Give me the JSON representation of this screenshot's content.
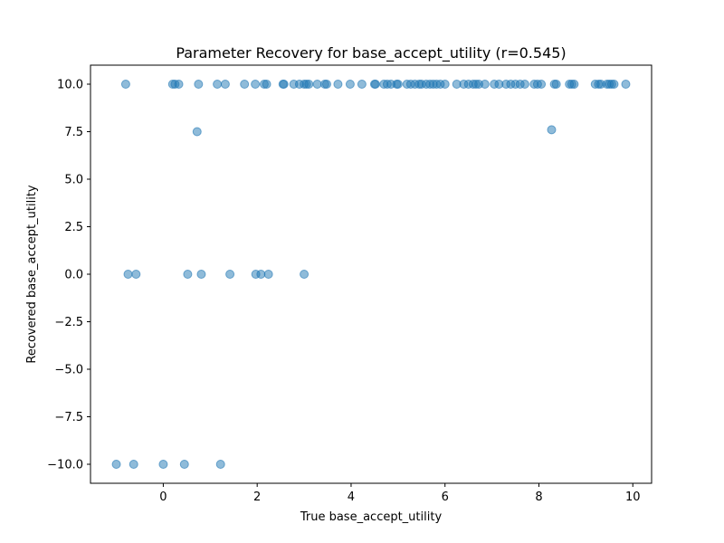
{
  "chart_data": {
    "type": "scatter",
    "title": "Parameter Recovery for base_accept_utility (r=0.545)",
    "xlabel": "True base_accept_utility",
    "ylabel": "Recovered base_accept_utility",
    "xlim": [
      -1.55,
      10.4
    ],
    "ylim": [
      -11.0,
      11.0
    ],
    "xticks": [
      0,
      2,
      4,
      6,
      8,
      10
    ],
    "yticks": [
      -10.0,
      -7.5,
      -5.0,
      -2.5,
      0.0,
      2.5,
      5.0,
      7.5,
      10.0
    ],
    "grid": false,
    "point_color": "#1f77b4",
    "point_alpha": 0.5,
    "series": [
      {
        "x": [
          -0.8,
          0.2,
          0.25,
          0.33,
          0.75,
          1.15,
          1.32,
          1.73,
          1.96,
          2.15,
          2.2,
          2.55,
          2.57,
          2.78,
          2.9,
          3.0,
          3.05,
          3.1,
          3.28,
          3.44,
          3.48,
          3.72,
          3.98,
          4.23,
          4.5,
          4.52,
          4.7,
          4.77,
          4.85,
          4.97,
          5.0,
          5.19,
          5.27,
          5.36,
          5.45,
          5.5,
          5.6,
          5.68,
          5.75,
          5.82,
          5.9,
          6.0,
          6.25,
          6.4,
          6.5,
          6.6,
          6.66,
          6.72,
          6.85,
          7.05,
          7.15,
          7.3,
          7.4,
          7.5,
          7.6,
          7.7,
          7.9,
          7.97,
          8.05,
          8.33,
          8.37,
          8.65,
          8.7,
          8.75,
          9.2,
          9.27,
          9.32,
          9.45,
          9.5,
          9.55,
          9.6,
          9.85,
          0.72,
          8.27,
          -0.75,
          -0.58,
          0.52,
          0.81,
          1.42,
          1.97,
          2.08,
          2.24,
          3.0,
          -1.0,
          -0.63,
          0.0,
          0.45,
          1.22
        ],
        "y": [
          10,
          10,
          10,
          10,
          10,
          10,
          10,
          10,
          10,
          10,
          10,
          10,
          10,
          10,
          10,
          10,
          10,
          10,
          10,
          10,
          10,
          10,
          10,
          10,
          10,
          10,
          10,
          10,
          10,
          10,
          10,
          10,
          10,
          10,
          10,
          10,
          10,
          10,
          10,
          10,
          10,
          10,
          10,
          10,
          10,
          10,
          10,
          10,
          10,
          10,
          10,
          10,
          10,
          10,
          10,
          10,
          10,
          10,
          10,
          10,
          10,
          10,
          10,
          10,
          10,
          10,
          10,
          10,
          10,
          10,
          10,
          10,
          7.5,
          7.6,
          0,
          0,
          0,
          0,
          0,
          0,
          0,
          0,
          0,
          -10,
          -10,
          -10,
          -10,
          -10
        ]
      }
    ]
  }
}
